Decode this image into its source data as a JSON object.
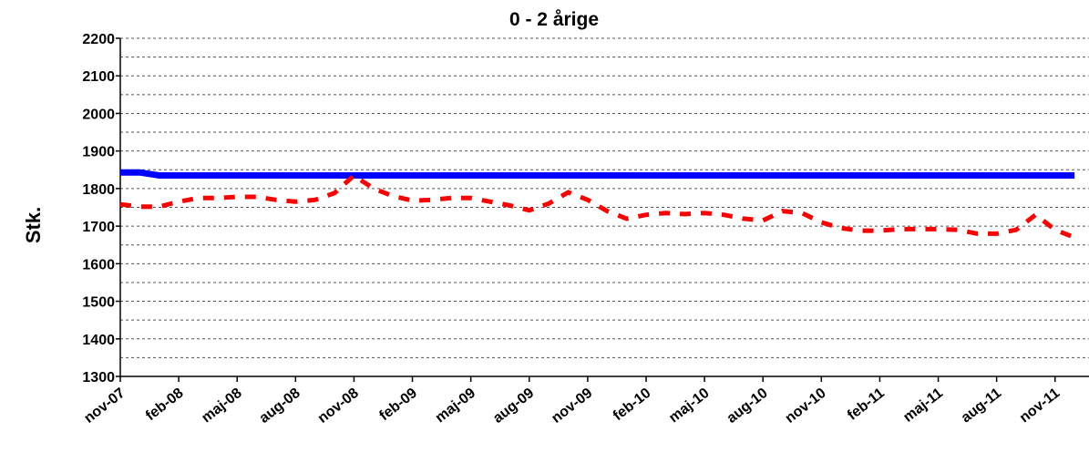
{
  "chart_data": {
    "type": "line",
    "title": "0 - 2 årige",
    "xlabel": "",
    "ylabel": "Stk.",
    "ylim": [
      1300,
      2200
    ],
    "yticks": [
      1300,
      1400,
      1500,
      1600,
      1700,
      1800,
      1900,
      2000,
      2100,
      2200
    ],
    "grid": "horizontal dashed",
    "x_tick_labels": [
      "nov-07",
      "feb-08",
      "maj-08",
      "aug-08",
      "nov-08",
      "feb-09",
      "maj-09",
      "aug-09",
      "nov-09",
      "feb-10",
      "maj-10",
      "aug-10",
      "nov-10",
      "feb-11",
      "maj-11",
      "aug-11",
      "nov-11"
    ],
    "x": [
      "nov-07",
      "dec-07",
      "jan-08",
      "feb-08",
      "mar-08",
      "apr-08",
      "maj-08",
      "jun-08",
      "jul-08",
      "aug-08",
      "sep-08",
      "okt-08",
      "nov-08",
      "dec-08",
      "jan-09",
      "feb-09",
      "mar-09",
      "apr-09",
      "maj-09",
      "jun-09",
      "jul-09",
      "aug-09",
      "sep-09",
      "okt-09",
      "nov-09",
      "dec-09",
      "jan-10",
      "feb-10",
      "mar-10",
      "apr-10",
      "maj-10",
      "jun-10",
      "jul-10",
      "aug-10",
      "sep-10",
      "okt-10",
      "nov-10",
      "dec-10",
      "jan-11",
      "feb-11",
      "mar-11",
      "apr-11",
      "maj-11",
      "jun-11",
      "jul-11",
      "aug-11",
      "sep-11",
      "okt-11",
      "nov-11",
      "dec-11"
    ],
    "series": [
      {
        "color": "#0000ff",
        "style": "solid",
        "values": [
          1843,
          1843,
          1835,
          1835,
          1835,
          1835,
          1835,
          1835,
          1835,
          1835,
          1835,
          1835,
          1835,
          1835,
          1835,
          1835,
          1835,
          1835,
          1835,
          1835,
          1835,
          1835,
          1835,
          1835,
          1835,
          1835,
          1835,
          1835,
          1835,
          1835,
          1835,
          1835,
          1835,
          1835,
          1835,
          1835,
          1835,
          1835,
          1835,
          1835,
          1835,
          1835,
          1835,
          1835,
          1835,
          1835,
          1835,
          1835,
          1835,
          1835
        ]
      },
      {
        "color": "#ff0000",
        "style": "dashed",
        "values": [
          1758,
          1752,
          1752,
          1765,
          1775,
          1775,
          1778,
          1778,
          1770,
          1765,
          1770,
          1788,
          1835,
          1800,
          1780,
          1768,
          1770,
          1775,
          1775,
          1765,
          1755,
          1742,
          1760,
          1790,
          1770,
          1740,
          1720,
          1730,
          1735,
          1732,
          1735,
          1730,
          1720,
          1715,
          1740,
          1735,
          1710,
          1695,
          1688,
          1688,
          1692,
          1692,
          1692,
          1690,
          1680,
          1680,
          1690,
          1730,
          1690,
          1670
        ]
      }
    ]
  }
}
